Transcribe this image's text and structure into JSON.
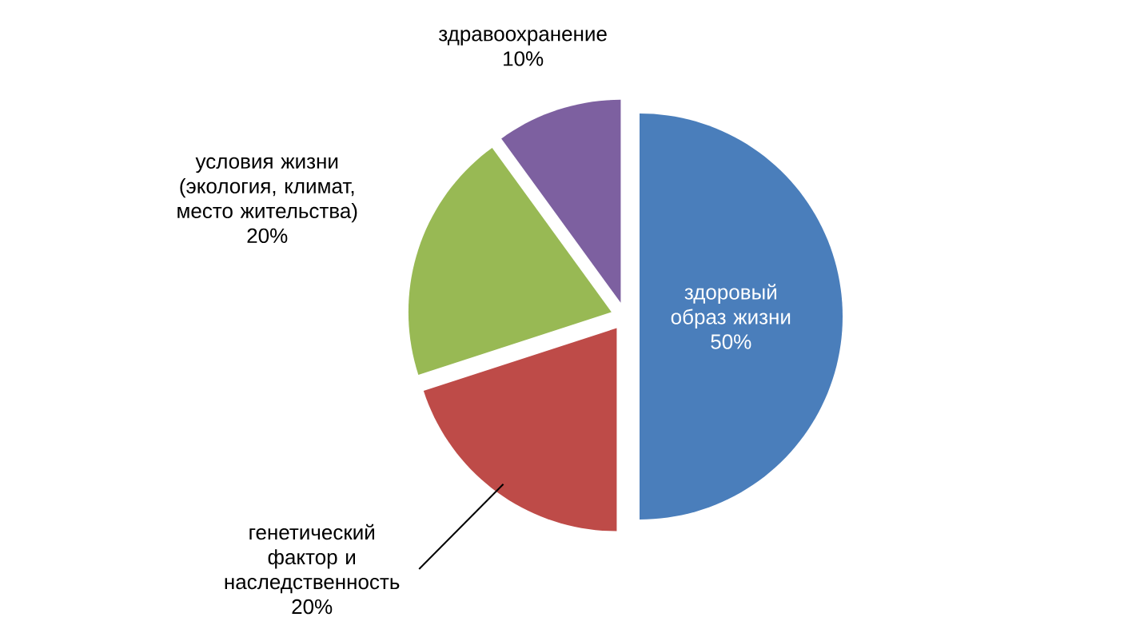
{
  "chart_data": {
    "type": "pie",
    "categories": [
      "здоровый образ жизни",
      "генетический фактор и наследственность",
      "условия жизни (экология, климат, место жительства)",
      "здравоохранение"
    ],
    "values": [
      50,
      20,
      20,
      10
    ],
    "value_labels": [
      "50%",
      "20%",
      "20%",
      "10%"
    ],
    "colors": [
      "#4a7ebb",
      "#be4b48",
      "#98b954",
      "#7d60a0"
    ]
  }
}
